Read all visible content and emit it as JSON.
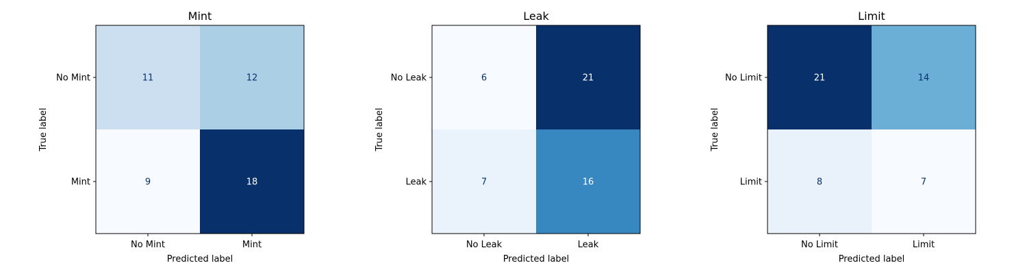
{
  "chart_data": [
    {
      "type": "heatmap",
      "title": "Mint",
      "xlabel": "Predicted label",
      "ylabel": "True label",
      "x_categories": [
        "No Mint",
        "Mint"
      ],
      "y_categories": [
        "No Mint",
        "Mint"
      ],
      "values": [
        [
          11,
          12
        ],
        [
          9,
          18
        ]
      ],
      "colormap": "Blues",
      "grid": false
    },
    {
      "type": "heatmap",
      "title": "Leak",
      "xlabel": "Predicted label",
      "ylabel": "True label",
      "x_categories": [
        "No Leak",
        "Leak"
      ],
      "y_categories": [
        "No Leak",
        "Leak"
      ],
      "values": [
        [
          6,
          21
        ],
        [
          7,
          16
        ]
      ],
      "colormap": "Blues",
      "grid": false
    },
    {
      "type": "heatmap",
      "title": "Limit",
      "xlabel": "Predicted label",
      "ylabel": "True label",
      "x_categories": [
        "No Limit",
        "Limit"
      ],
      "y_categories": [
        "No Limit",
        "Limit"
      ],
      "values": [
        [
          21,
          14
        ],
        [
          8,
          7
        ]
      ],
      "colormap": "Blues",
      "grid": false
    }
  ]
}
